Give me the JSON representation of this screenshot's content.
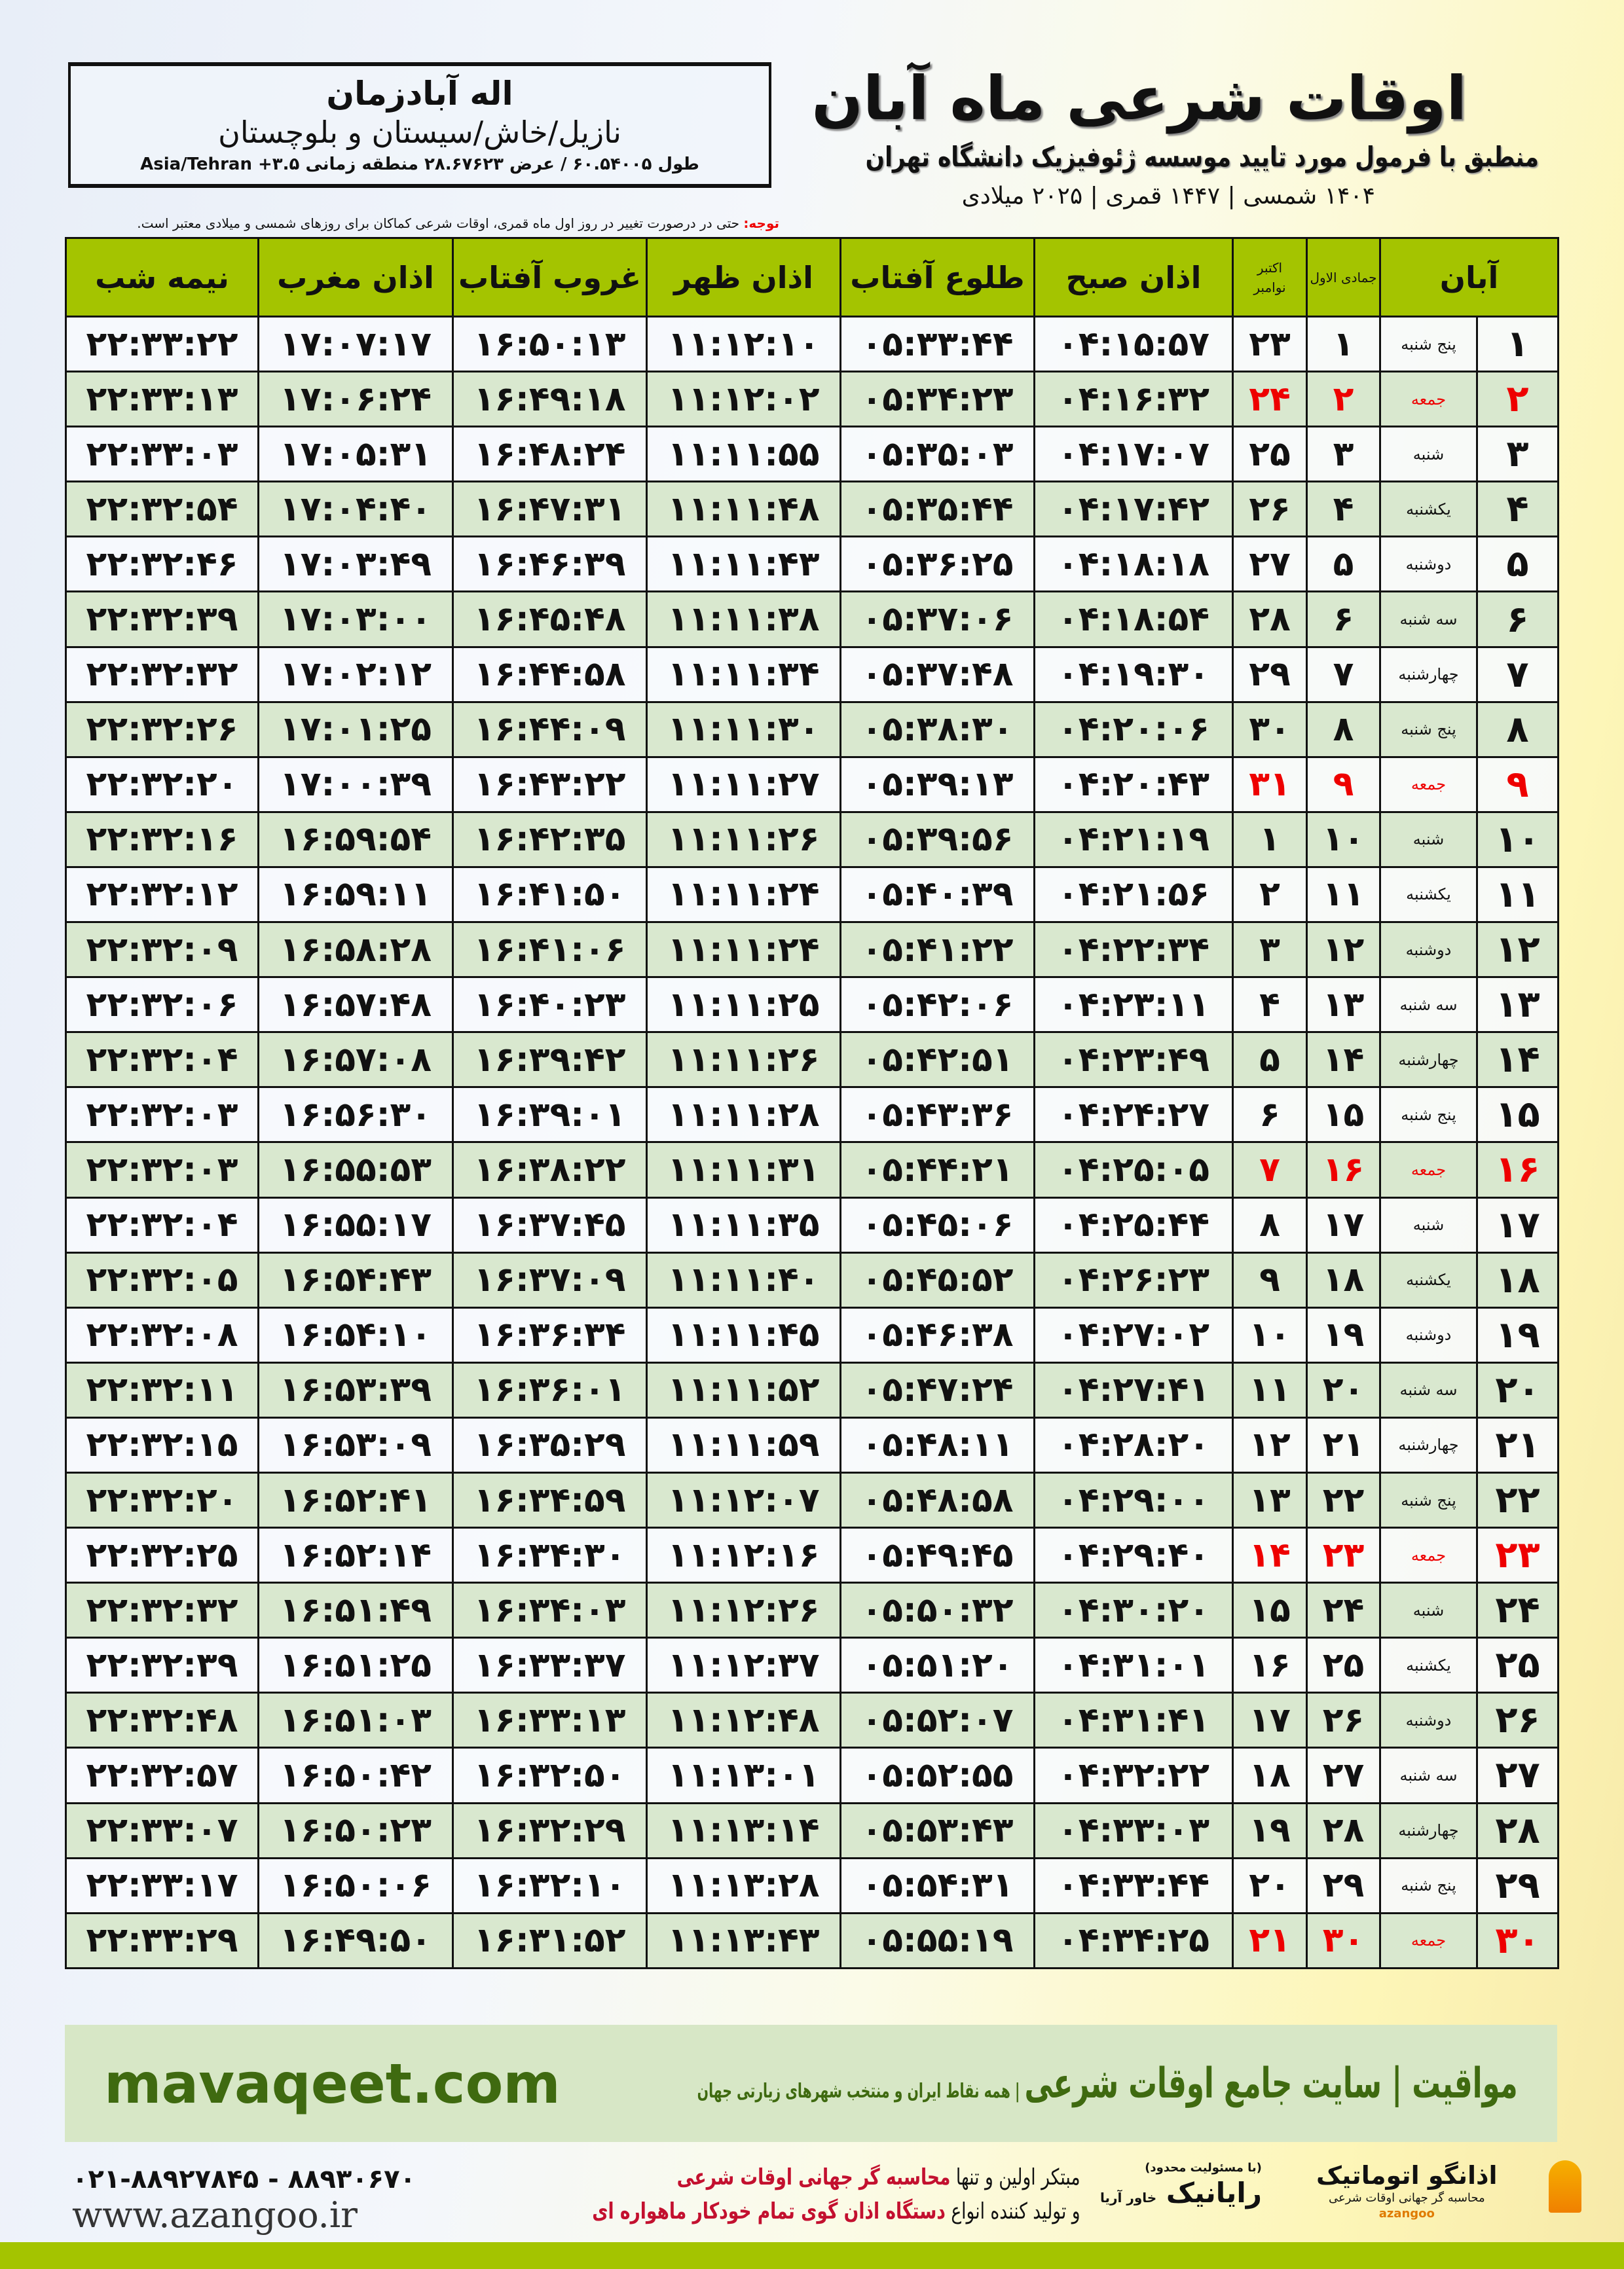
{
  "location": {
    "city": "اله آبادزمان",
    "region": "نازیل/خاش/سیستان و بلوچستان",
    "coords": "طول ۶۰.۵۴۰۰۵ / عرض ۲۸.۶۷۶۲۳ منطقه زمانی ۳.۵+ Asia/Tehran"
  },
  "header": {
    "title": "اوقات شرعی ماه آبان",
    "subtitle": "منطبق با فرمول مورد تایید موسسه ژئوفیزیک دانشگاه تهران",
    "dates": "۱۴۰۴ شمسی | ۱۴۴۷ قمری | ۲۰۲۵ میلادی",
    "note_label": "توجه:",
    "note_text": " حتی در درصورت تغییر در روز اول ماه قمری، اوقات شرعی کماکان برای روزهای شمسی و میلادی معتبر است."
  },
  "columns": {
    "day": "آبان",
    "hijri": "جمادی الاول",
    "greg_top": "اکتبر",
    "greg_bottom": "نوامبر",
    "fajr": "اذان صبح",
    "sunrise": "طلوع آفتاب",
    "dhuhr": "اذان ظهر",
    "sunset": "غروب آفتاب",
    "maghrib": "اذان مغرب",
    "midnight": "نیمه شب"
  },
  "colors": {
    "header_green": "#a4c400",
    "row_alt": "#d9e8cf",
    "friday_red": "#e00000",
    "promo_green": "#3f6a10"
  },
  "rows": [
    {
      "d": "۱",
      "w": "پنج شنبه",
      "h": "۱",
      "g": "۲۳",
      "fajr": "۰۴:۱۵:۵۷",
      "sunrise": "۰۵:۳۳:۴۴",
      "dhuhr": "۱۱:۱۲:۱۰",
      "sunset": "۱۶:۵۰:۱۳",
      "maghrib": "۱۷:۰۷:۱۷",
      "midnight": "۲۲:۳۳:۲۲"
    },
    {
      "d": "۲",
      "w": "جمعه",
      "h": "۲",
      "g": "۲۴",
      "fajr": "۰۴:۱۶:۳۲",
      "sunrise": "۰۵:۳۴:۲۳",
      "dhuhr": "۱۱:۱۲:۰۲",
      "sunset": "۱۶:۴۹:۱۸",
      "maghrib": "۱۷:۰۶:۲۴",
      "midnight": "۲۲:۳۳:۱۳",
      "friday": true
    },
    {
      "d": "۳",
      "w": "شنبه",
      "h": "۳",
      "g": "۲۵",
      "fajr": "۰۴:۱۷:۰۷",
      "sunrise": "۰۵:۳۵:۰۳",
      "dhuhr": "۱۱:۱۱:۵۵",
      "sunset": "۱۶:۴۸:۲۴",
      "maghrib": "۱۷:۰۵:۳۱",
      "midnight": "۲۲:۳۳:۰۳"
    },
    {
      "d": "۴",
      "w": "یکشنبه",
      "h": "۴",
      "g": "۲۶",
      "fajr": "۰۴:۱۷:۴۲",
      "sunrise": "۰۵:۳۵:۴۴",
      "dhuhr": "۱۱:۱۱:۴۸",
      "sunset": "۱۶:۴۷:۳۱",
      "maghrib": "۱۷:۰۴:۴۰",
      "midnight": "۲۲:۳۲:۵۴"
    },
    {
      "d": "۵",
      "w": "دوشنبه",
      "h": "۵",
      "g": "۲۷",
      "fajr": "۰۴:۱۸:۱۸",
      "sunrise": "۰۵:۳۶:۲۵",
      "dhuhr": "۱۱:۱۱:۴۳",
      "sunset": "۱۶:۴۶:۳۹",
      "maghrib": "۱۷:۰۳:۴۹",
      "midnight": "۲۲:۳۲:۴۶"
    },
    {
      "d": "۶",
      "w": "سه شنبه",
      "h": "۶",
      "g": "۲۸",
      "fajr": "۰۴:۱۸:۵۴",
      "sunrise": "۰۵:۳۷:۰۶",
      "dhuhr": "۱۱:۱۱:۳۸",
      "sunset": "۱۶:۴۵:۴۸",
      "maghrib": "۱۷:۰۳:۰۰",
      "midnight": "۲۲:۳۲:۳۹"
    },
    {
      "d": "۷",
      "w": "چهارشنبه",
      "h": "۷",
      "g": "۲۹",
      "fajr": "۰۴:۱۹:۳۰",
      "sunrise": "۰۵:۳۷:۴۸",
      "dhuhr": "۱۱:۱۱:۳۴",
      "sunset": "۱۶:۴۴:۵۸",
      "maghrib": "۱۷:۰۲:۱۲",
      "midnight": "۲۲:۳۲:۳۲"
    },
    {
      "d": "۸",
      "w": "پنج شنبه",
      "h": "۸",
      "g": "۳۰",
      "fajr": "۰۴:۲۰:۰۶",
      "sunrise": "۰۵:۳۸:۳۰",
      "dhuhr": "۱۱:۱۱:۳۰",
      "sunset": "۱۶:۴۴:۰۹",
      "maghrib": "۱۷:۰۱:۲۵",
      "midnight": "۲۲:۳۲:۲۶"
    },
    {
      "d": "۹",
      "w": "جمعه",
      "h": "۹",
      "g": "۳۱",
      "fajr": "۰۴:۲۰:۴۳",
      "sunrise": "۰۵:۳۹:۱۳",
      "dhuhr": "۱۱:۱۱:۲۷",
      "sunset": "۱۶:۴۳:۲۲",
      "maghrib": "۱۷:۰۰:۳۹",
      "midnight": "۲۲:۳۲:۲۰",
      "friday": true
    },
    {
      "d": "۱۰",
      "w": "شنبه",
      "h": "۱۰",
      "g": "۱",
      "fajr": "۰۴:۲۱:۱۹",
      "sunrise": "۰۵:۳۹:۵۶",
      "dhuhr": "۱۱:۱۱:۲۶",
      "sunset": "۱۶:۴۲:۳۵",
      "maghrib": "۱۶:۵۹:۵۴",
      "midnight": "۲۲:۳۲:۱۶"
    },
    {
      "d": "۱۱",
      "w": "یکشنبه",
      "h": "۱۱",
      "g": "۲",
      "fajr": "۰۴:۲۱:۵۶",
      "sunrise": "۰۵:۴۰:۳۹",
      "dhuhr": "۱۱:۱۱:۲۴",
      "sunset": "۱۶:۴۱:۵۰",
      "maghrib": "۱۶:۵۹:۱۱",
      "midnight": "۲۲:۳۲:۱۲"
    },
    {
      "d": "۱۲",
      "w": "دوشنبه",
      "h": "۱۲",
      "g": "۳",
      "fajr": "۰۴:۲۲:۳۴",
      "sunrise": "۰۵:۴۱:۲۲",
      "dhuhr": "۱۱:۱۱:۲۴",
      "sunset": "۱۶:۴۱:۰۶",
      "maghrib": "۱۶:۵۸:۲۸",
      "midnight": "۲۲:۳۲:۰۹"
    },
    {
      "d": "۱۳",
      "w": "سه شنبه",
      "h": "۱۳",
      "g": "۴",
      "fajr": "۰۴:۲۳:۱۱",
      "sunrise": "۰۵:۴۲:۰۶",
      "dhuhr": "۱۱:۱۱:۲۵",
      "sunset": "۱۶:۴۰:۲۳",
      "maghrib": "۱۶:۵۷:۴۸",
      "midnight": "۲۲:۳۲:۰۶"
    },
    {
      "d": "۱۴",
      "w": "چهارشنبه",
      "h": "۱۴",
      "g": "۵",
      "fajr": "۰۴:۲۳:۴۹",
      "sunrise": "۰۵:۴۲:۵۱",
      "dhuhr": "۱۱:۱۱:۲۶",
      "sunset": "۱۶:۳۹:۴۲",
      "maghrib": "۱۶:۵۷:۰۸",
      "midnight": "۲۲:۳۲:۰۴"
    },
    {
      "d": "۱۵",
      "w": "پنج شنبه",
      "h": "۱۵",
      "g": "۶",
      "fajr": "۰۴:۲۴:۲۷",
      "sunrise": "۰۵:۴۳:۳۶",
      "dhuhr": "۱۱:۱۱:۲۸",
      "sunset": "۱۶:۳۹:۰۱",
      "maghrib": "۱۶:۵۶:۳۰",
      "midnight": "۲۲:۳۲:۰۳"
    },
    {
      "d": "۱۶",
      "w": "جمعه",
      "h": "۱۶",
      "g": "۷",
      "fajr": "۰۴:۲۵:۰۵",
      "sunrise": "۰۵:۴۴:۲۱",
      "dhuhr": "۱۱:۱۱:۳۱",
      "sunset": "۱۶:۳۸:۲۲",
      "maghrib": "۱۶:۵۵:۵۳",
      "midnight": "۲۲:۳۲:۰۳",
      "friday": true
    },
    {
      "d": "۱۷",
      "w": "شنبه",
      "h": "۱۷",
      "g": "۸",
      "fajr": "۰۴:۲۵:۴۴",
      "sunrise": "۰۵:۴۵:۰۶",
      "dhuhr": "۱۱:۱۱:۳۵",
      "sunset": "۱۶:۳۷:۴۵",
      "maghrib": "۱۶:۵۵:۱۷",
      "midnight": "۲۲:۳۲:۰۴"
    },
    {
      "d": "۱۸",
      "w": "یکشنبه",
      "h": "۱۸",
      "g": "۹",
      "fajr": "۰۴:۲۶:۲۳",
      "sunrise": "۰۵:۴۵:۵۲",
      "dhuhr": "۱۱:۱۱:۴۰",
      "sunset": "۱۶:۳۷:۰۹",
      "maghrib": "۱۶:۵۴:۴۳",
      "midnight": "۲۲:۳۲:۰۵"
    },
    {
      "d": "۱۹",
      "w": "دوشنبه",
      "h": "۱۹",
      "g": "۱۰",
      "fajr": "۰۴:۲۷:۰۲",
      "sunrise": "۰۵:۴۶:۳۸",
      "dhuhr": "۱۱:۱۱:۴۵",
      "sunset": "۱۶:۳۶:۳۴",
      "maghrib": "۱۶:۵۴:۱۰",
      "midnight": "۲۲:۳۲:۰۸"
    },
    {
      "d": "۲۰",
      "w": "سه شنبه",
      "h": "۲۰",
      "g": "۱۱",
      "fajr": "۰۴:۲۷:۴۱",
      "sunrise": "۰۵:۴۷:۲۴",
      "dhuhr": "۱۱:۱۱:۵۲",
      "sunset": "۱۶:۳۶:۰۱",
      "maghrib": "۱۶:۵۳:۳۹",
      "midnight": "۲۲:۳۲:۱۱"
    },
    {
      "d": "۲۱",
      "w": "چهارشنبه",
      "h": "۲۱",
      "g": "۱۲",
      "fajr": "۰۴:۲۸:۲۰",
      "sunrise": "۰۵:۴۸:۱۱",
      "dhuhr": "۱۱:۱۱:۵۹",
      "sunset": "۱۶:۳۵:۲۹",
      "maghrib": "۱۶:۵۳:۰۹",
      "midnight": "۲۲:۳۲:۱۵"
    },
    {
      "d": "۲۲",
      "w": "پنج شنبه",
      "h": "۲۲",
      "g": "۱۳",
      "fajr": "۰۴:۲۹:۰۰",
      "sunrise": "۰۵:۴۸:۵۸",
      "dhuhr": "۱۱:۱۲:۰۷",
      "sunset": "۱۶:۳۴:۵۹",
      "maghrib": "۱۶:۵۲:۴۱",
      "midnight": "۲۲:۳۲:۲۰"
    },
    {
      "d": "۲۳",
      "w": "جمعه",
      "h": "۲۳",
      "g": "۱۴",
      "fajr": "۰۴:۲۹:۴۰",
      "sunrise": "۰۵:۴۹:۴۵",
      "dhuhr": "۱۱:۱۲:۱۶",
      "sunset": "۱۶:۳۴:۳۰",
      "maghrib": "۱۶:۵۲:۱۴",
      "midnight": "۲۲:۳۲:۲۵",
      "friday": true
    },
    {
      "d": "۲۴",
      "w": "شنبه",
      "h": "۲۴",
      "g": "۱۵",
      "fajr": "۰۴:۳۰:۲۰",
      "sunrise": "۰۵:۵۰:۳۲",
      "dhuhr": "۱۱:۱۲:۲۶",
      "sunset": "۱۶:۳۴:۰۳",
      "maghrib": "۱۶:۵۱:۴۹",
      "midnight": "۲۲:۳۲:۳۲"
    },
    {
      "d": "۲۵",
      "w": "یکشنبه",
      "h": "۲۵",
      "g": "۱۶",
      "fajr": "۰۴:۳۱:۰۱",
      "sunrise": "۰۵:۵۱:۲۰",
      "dhuhr": "۱۱:۱۲:۳۷",
      "sunset": "۱۶:۳۳:۳۷",
      "maghrib": "۱۶:۵۱:۲۵",
      "midnight": "۲۲:۳۲:۳۹"
    },
    {
      "d": "۲۶",
      "w": "دوشنبه",
      "h": "۲۶",
      "g": "۱۷",
      "fajr": "۰۴:۳۱:۴۱",
      "sunrise": "۰۵:۵۲:۰۷",
      "dhuhr": "۱۱:۱۲:۴۸",
      "sunset": "۱۶:۳۳:۱۳",
      "maghrib": "۱۶:۵۱:۰۳",
      "midnight": "۲۲:۳۲:۴۸"
    },
    {
      "d": "۲۷",
      "w": "سه شنبه",
      "h": "۲۷",
      "g": "۱۸",
      "fajr": "۰۴:۳۲:۲۲",
      "sunrise": "۰۵:۵۲:۵۵",
      "dhuhr": "۱۱:۱۳:۰۱",
      "sunset": "۱۶:۳۲:۵۰",
      "maghrib": "۱۶:۵۰:۴۲",
      "midnight": "۲۲:۳۲:۵۷"
    },
    {
      "d": "۲۸",
      "w": "چهارشنبه",
      "h": "۲۸",
      "g": "۱۹",
      "fajr": "۰۴:۳۳:۰۳",
      "sunrise": "۰۵:۵۳:۴۳",
      "dhuhr": "۱۱:۱۳:۱۴",
      "sunset": "۱۶:۳۲:۲۹",
      "maghrib": "۱۶:۵۰:۲۳",
      "midnight": "۲۲:۳۳:۰۷"
    },
    {
      "d": "۲۹",
      "w": "پنج شنبه",
      "h": "۲۹",
      "g": "۲۰",
      "fajr": "۰۴:۳۳:۴۴",
      "sunrise": "۰۵:۵۴:۳۱",
      "dhuhr": "۱۱:۱۳:۲۸",
      "sunset": "۱۶:۳۲:۱۰",
      "maghrib": "۱۶:۵۰:۰۶",
      "midnight": "۲۲:۳۳:۱۷"
    },
    {
      "d": "۳۰",
      "w": "جمعه",
      "h": "۳۰",
      "g": "۲۱",
      "fajr": "۰۴:۳۴:۲۵",
      "sunrise": "۰۵:۵۵:۱۹",
      "dhuhr": "۱۱:۱۳:۴۳",
      "sunset": "۱۶:۳۱:۵۲",
      "maghrib": "۱۶:۴۹:۵۰",
      "midnight": "۲۲:۳۳:۲۹",
      "friday": true
    }
  ],
  "promo": {
    "site": "mavaqeet.com",
    "brand": "مواقیت | سایت جامع اوقات شرعی",
    "tagline": " | همه نقاط ایران و منتخب شهرهای زیارتی جهان"
  },
  "footer": {
    "phones": "۰۲۱-۸۸۹۲۷۸۴۵ - ۸۸۹۳۰۶۷۰",
    "website": "www.azangoo.ir",
    "line1_a": "مبتکر اولین و تنها ",
    "line1_b": "محاسبه گر جهانی اوقات شرعی",
    "line2_a": "و تولید کننده انواع ",
    "line2_b": "دستگاه اذان گوی تمام خودکار ماهواره ای",
    "logo_raianik": "رایانیک",
    "logo_raianik_sub": "خاور آریا",
    "logo_raianik_note": "(با مسئولیت محدود)",
    "logo_azangoo": "اذانگو اتوماتیک",
    "logo_azangoo_sub": "محاسبه گر جهانی اوقات شرعی",
    "logo_azangoo_en": "azangoo"
  }
}
